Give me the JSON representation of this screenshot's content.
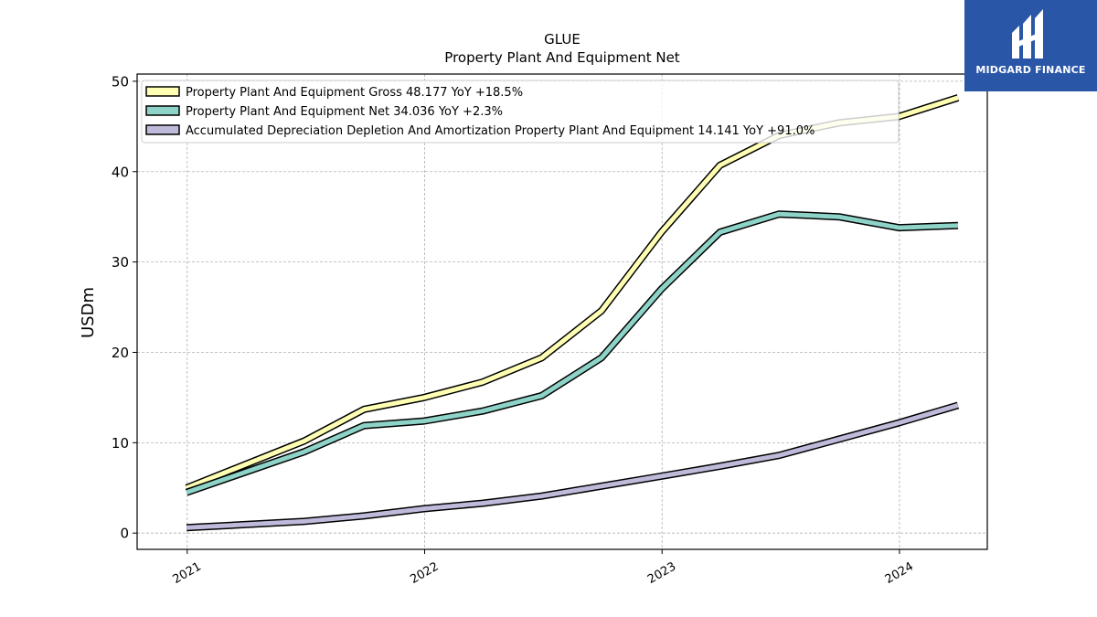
{
  "brand": {
    "name": "MIDGARD FINANCE",
    "color": "#2a56a8"
  },
  "chart_data": {
    "type": "line",
    "title": "GLUE",
    "subtitle": "Property Plant And Equipment Net",
    "ylabel": "USDm",
    "xlabel": "",
    "ylim": [
      -1.8,
      50.8
    ],
    "xlim": [
      "2020-10-16",
      "2024-05-15"
    ],
    "yticks": [
      0,
      10,
      20,
      30,
      40,
      50
    ],
    "xticks": [
      "2021",
      "2022",
      "2023",
      "2024"
    ],
    "grid": true,
    "legend_position": "top-left",
    "series": [
      {
        "name": "Property Plant And Equipment Gross  48.177 YoY +18.5%",
        "color": "#ffffb3",
        "x": [
          "2020-12-31",
          "2021-06-30",
          "2021-09-30",
          "2021-12-31",
          "2022-03-31",
          "2022-06-30",
          "2022-09-30",
          "2022-12-31",
          "2023-03-31",
          "2023-06-30",
          "2023-09-30",
          "2023-12-31",
          "2024-03-31"
        ],
        "values": [
          5.0,
          10.2,
          13.7,
          15.0,
          16.7,
          19.4,
          24.6,
          33.3,
          40.7,
          44.0,
          45.4,
          46.1,
          48.177
        ]
      },
      {
        "name": "Property Plant And Equipment Net  34.036 YoY +2.3%",
        "color": "#8dd3c7",
        "x": [
          "2020-12-31",
          "2021-06-30",
          "2021-09-30",
          "2021-12-31",
          "2022-03-31",
          "2022-06-30",
          "2022-09-30",
          "2022-12-31",
          "2023-03-31",
          "2023-06-30",
          "2023-09-30",
          "2023-12-31",
          "2024-03-31"
        ],
        "values": [
          4.5,
          9.0,
          11.9,
          12.4,
          13.5,
          15.2,
          19.4,
          27.0,
          33.3,
          35.3,
          35.0,
          33.8,
          34.036
        ]
      },
      {
        "name": "Accumulated Depreciation Depletion And Amortization Property Plant And Equipment  14.141 YoY +91.0%",
        "color": "#bebada",
        "x": [
          "2020-12-31",
          "2021-06-30",
          "2021-09-30",
          "2021-12-31",
          "2022-03-31",
          "2022-06-30",
          "2022-09-30",
          "2022-12-31",
          "2023-03-31",
          "2023-06-30",
          "2023-09-30",
          "2023-12-31",
          "2024-03-31"
        ],
        "values": [
          0.6,
          1.3,
          1.9,
          2.7,
          3.3,
          4.1,
          5.2,
          6.3,
          7.4,
          8.6,
          10.4,
          12.2,
          14.141
        ]
      }
    ]
  }
}
